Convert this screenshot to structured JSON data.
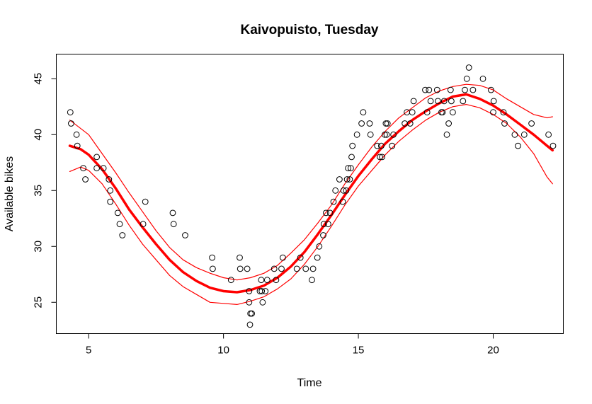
{
  "chart_data": {
    "type": "scatter",
    "title": "Kaivopuisto, Tuesday",
    "xlabel": "Time",
    "ylabel": "Available bikes",
    "xlim": [
      3.8,
      22.6
    ],
    "ylim": [
      22.2,
      47.2
    ],
    "xticks": [
      5,
      10,
      15,
      20
    ],
    "yticks": [
      25,
      30,
      35,
      40,
      45
    ],
    "grid": false,
    "legend": "none",
    "colors": {
      "points": "#000000",
      "fit": "#ff0000"
    },
    "series": [
      {
        "type": "scatter",
        "marker": "open-circle",
        "points": [
          [
            4.32,
            42
          ],
          [
            4.35,
            41
          ],
          [
            4.55,
            40
          ],
          [
            4.58,
            39
          ],
          [
            4.8,
            37
          ],
          [
            4.88,
            36
          ],
          [
            5.3,
            38
          ],
          [
            5.3,
            37
          ],
          [
            5.55,
            37
          ],
          [
            5.75,
            36
          ],
          [
            5.8,
            35
          ],
          [
            5.8,
            34
          ],
          [
            6.08,
            33
          ],
          [
            6.15,
            32
          ],
          [
            6.25,
            31
          ],
          [
            7.02,
            32
          ],
          [
            7.1,
            34
          ],
          [
            8.12,
            33
          ],
          [
            8.15,
            32
          ],
          [
            8.58,
            31
          ],
          [
            9.58,
            29
          ],
          [
            9.6,
            28
          ],
          [
            10.28,
            27
          ],
          [
            10.6,
            29
          ],
          [
            10.62,
            28
          ],
          [
            10.88,
            28
          ],
          [
            10.95,
            26
          ],
          [
            10.95,
            25
          ],
          [
            11.0,
            24
          ],
          [
            11.05,
            24
          ],
          [
            10.98,
            23
          ],
          [
            11.35,
            26
          ],
          [
            11.4,
            27
          ],
          [
            11.42,
            26
          ],
          [
            11.45,
            25
          ],
          [
            11.55,
            26
          ],
          [
            11.62,
            27
          ],
          [
            11.88,
            28
          ],
          [
            11.95,
            27
          ],
          [
            12.15,
            28
          ],
          [
            12.2,
            29
          ],
          [
            12.72,
            28
          ],
          [
            12.85,
            29
          ],
          [
            13.05,
            28
          ],
          [
            13.28,
            27
          ],
          [
            13.32,
            28
          ],
          [
            13.48,
            29
          ],
          [
            13.55,
            30
          ],
          [
            13.7,
            31
          ],
          [
            13.72,
            32
          ],
          [
            13.8,
            33
          ],
          [
            13.88,
            32
          ],
          [
            13.95,
            33
          ],
          [
            14.08,
            34
          ],
          [
            14.15,
            35
          ],
          [
            14.3,
            36
          ],
          [
            14.42,
            34
          ],
          [
            14.45,
            35
          ],
          [
            14.55,
            35
          ],
          [
            14.58,
            36
          ],
          [
            14.62,
            37
          ],
          [
            14.68,
            36
          ],
          [
            14.72,
            37
          ],
          [
            14.75,
            38
          ],
          [
            14.78,
            39
          ],
          [
            14.95,
            40
          ],
          [
            15.12,
            41
          ],
          [
            15.18,
            42
          ],
          [
            15.42,
            41
          ],
          [
            15.45,
            40
          ],
          [
            15.7,
            39
          ],
          [
            15.8,
            38
          ],
          [
            15.85,
            39
          ],
          [
            15.88,
            38
          ],
          [
            15.98,
            40
          ],
          [
            16.02,
            41
          ],
          [
            16.05,
            40
          ],
          [
            16.08,
            41
          ],
          [
            16.25,
            39
          ],
          [
            16.3,
            40
          ],
          [
            16.72,
            41
          ],
          [
            16.8,
            42
          ],
          [
            16.92,
            41
          ],
          [
            17.0,
            42
          ],
          [
            17.05,
            43
          ],
          [
            17.48,
            44
          ],
          [
            17.55,
            42
          ],
          [
            17.62,
            44
          ],
          [
            17.68,
            43
          ],
          [
            17.92,
            44
          ],
          [
            17.95,
            43
          ],
          [
            18.08,
            42
          ],
          [
            18.12,
            42
          ],
          [
            18.18,
            43
          ],
          [
            18.28,
            40
          ],
          [
            18.35,
            41
          ],
          [
            18.42,
            44
          ],
          [
            18.45,
            43
          ],
          [
            18.5,
            42
          ],
          [
            18.88,
            43
          ],
          [
            18.95,
            44
          ],
          [
            19.02,
            45
          ],
          [
            19.1,
            46
          ],
          [
            19.25,
            44
          ],
          [
            19.62,
            45
          ],
          [
            19.92,
            44
          ],
          [
            20.0,
            42
          ],
          [
            20.02,
            43
          ],
          [
            20.38,
            42
          ],
          [
            20.42,
            41
          ],
          [
            20.8,
            40
          ],
          [
            20.92,
            39
          ],
          [
            21.15,
            40
          ],
          [
            21.42,
            41
          ],
          [
            22.05,
            40
          ],
          [
            22.22,
            39
          ]
        ]
      },
      {
        "type": "line",
        "role": "fit",
        "color": "#ff0000",
        "width": 3.5,
        "points": [
          [
            4.3,
            39.0
          ],
          [
            4.7,
            38.7
          ],
          [
            5.0,
            38.2
          ],
          [
            5.5,
            36.9
          ],
          [
            6.0,
            35.2
          ],
          [
            6.5,
            33.3
          ],
          [
            7.0,
            31.7
          ],
          [
            7.5,
            30.2
          ],
          [
            8.0,
            28.8
          ],
          [
            8.5,
            27.7
          ],
          [
            9.0,
            26.9
          ],
          [
            9.5,
            26.3
          ],
          [
            10.0,
            26.0
          ],
          [
            10.5,
            25.9
          ],
          [
            11.0,
            26.1
          ],
          [
            11.5,
            26.5
          ],
          [
            12.0,
            27.2
          ],
          [
            12.5,
            28.2
          ],
          [
            13.0,
            29.5
          ],
          [
            13.5,
            31.1
          ],
          [
            14.0,
            32.8
          ],
          [
            14.5,
            34.6
          ],
          [
            15.0,
            36.3
          ],
          [
            15.5,
            37.8
          ],
          [
            16.0,
            39.2
          ],
          [
            16.5,
            40.3
          ],
          [
            17.0,
            41.3
          ],
          [
            17.5,
            42.1
          ],
          [
            18.0,
            42.8
          ],
          [
            18.5,
            43.4
          ],
          [
            19.0,
            43.6
          ],
          [
            19.5,
            43.2
          ],
          [
            20.0,
            42.6
          ],
          [
            20.5,
            41.8
          ],
          [
            21.0,
            40.9
          ],
          [
            21.5,
            40.0
          ],
          [
            22.0,
            39.0
          ],
          [
            22.2,
            38.6
          ]
        ]
      },
      {
        "type": "line",
        "role": "upper-band",
        "color": "#ff0000",
        "width": 1.2,
        "points": [
          [
            4.3,
            41.3
          ],
          [
            5.0,
            40.0
          ],
          [
            5.5,
            38.3
          ],
          [
            6.0,
            36.6
          ],
          [
            6.5,
            34.8
          ],
          [
            7.0,
            33.1
          ],
          [
            7.5,
            31.4
          ],
          [
            8.0,
            29.9
          ],
          [
            8.5,
            28.8
          ],
          [
            9.0,
            28.1
          ],
          [
            9.5,
            27.6
          ],
          [
            10.0,
            27.2
          ],
          [
            10.5,
            27.0
          ],
          [
            11.0,
            27.2
          ],
          [
            11.5,
            27.6
          ],
          [
            12.0,
            28.3
          ],
          [
            12.5,
            29.4
          ],
          [
            13.0,
            30.6
          ],
          [
            13.5,
            32.1
          ],
          [
            14.0,
            33.7
          ],
          [
            14.5,
            35.6
          ],
          [
            15.0,
            37.3
          ],
          [
            15.5,
            38.9
          ],
          [
            16.0,
            40.3
          ],
          [
            16.5,
            41.5
          ],
          [
            17.0,
            42.4
          ],
          [
            17.5,
            43.3
          ],
          [
            18.0,
            43.9
          ],
          [
            18.5,
            44.3
          ],
          [
            19.0,
            44.5
          ],
          [
            19.5,
            44.4
          ],
          [
            20.0,
            44.0
          ],
          [
            20.5,
            43.2
          ],
          [
            21.0,
            42.5
          ],
          [
            21.5,
            41.8
          ],
          [
            22.0,
            41.5
          ],
          [
            22.2,
            41.6
          ]
        ]
      },
      {
        "type": "line",
        "role": "lower-band",
        "color": "#ff0000",
        "width": 1.2,
        "points": [
          [
            4.3,
            36.7
          ],
          [
            4.7,
            37.1
          ],
          [
            5.0,
            36.8
          ],
          [
            5.5,
            35.6
          ],
          [
            6.0,
            33.8
          ],
          [
            6.5,
            31.9
          ],
          [
            7.0,
            30.2
          ],
          [
            7.5,
            28.8
          ],
          [
            8.0,
            27.4
          ],
          [
            8.5,
            26.4
          ],
          [
            9.0,
            25.7
          ],
          [
            9.5,
            25.0
          ],
          [
            10.0,
            24.9
          ],
          [
            10.5,
            24.8
          ],
          [
            11.0,
            25.1
          ],
          [
            11.5,
            25.5
          ],
          [
            12.0,
            26.2
          ],
          [
            12.5,
            27.1
          ],
          [
            13.0,
            28.4
          ],
          [
            13.5,
            30.0
          ],
          [
            14.0,
            31.8
          ],
          [
            14.5,
            33.7
          ],
          [
            15.0,
            35.4
          ],
          [
            15.5,
            36.8
          ],
          [
            16.0,
            38.2
          ],
          [
            16.5,
            39.4
          ],
          [
            17.0,
            40.4
          ],
          [
            17.5,
            41.3
          ],
          [
            18.0,
            42.0
          ],
          [
            18.5,
            42.5
          ],
          [
            19.0,
            42.7
          ],
          [
            19.5,
            42.4
          ],
          [
            20.0,
            41.8
          ],
          [
            20.5,
            41.0
          ],
          [
            21.0,
            39.8
          ],
          [
            21.5,
            38.3
          ],
          [
            22.0,
            36.2
          ],
          [
            22.2,
            35.6
          ]
        ]
      }
    ]
  }
}
